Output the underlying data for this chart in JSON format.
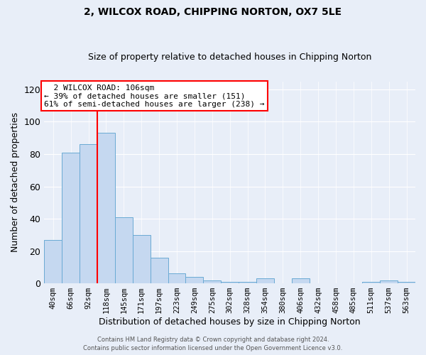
{
  "title": "2, WILCOX ROAD, CHIPPING NORTON, OX7 5LE",
  "subtitle": "Size of property relative to detached houses in Chipping Norton",
  "xlabel": "Distribution of detached houses by size in Chipping Norton",
  "ylabel": "Number of detached properties",
  "bar_labels": [
    "40sqm",
    "66sqm",
    "92sqm",
    "118sqm",
    "145sqm",
    "171sqm",
    "197sqm",
    "223sqm",
    "249sqm",
    "275sqm",
    "302sqm",
    "328sqm",
    "354sqm",
    "380sqm",
    "406sqm",
    "432sqm",
    "458sqm",
    "485sqm",
    "511sqm",
    "537sqm",
    "563sqm"
  ],
  "bar_values": [
    27,
    81,
    86,
    93,
    41,
    30,
    16,
    6,
    4,
    2,
    1,
    1,
    3,
    0,
    3,
    0,
    0,
    0,
    1,
    2,
    1
  ],
  "bar_color": "#c5d8f0",
  "bar_edgecolor": "#6aaad4",
  "ylim": [
    0,
    125
  ],
  "yticks": [
    0,
    20,
    40,
    60,
    80,
    100,
    120
  ],
  "vline_color": "red",
  "annotation_text": "  2 WILCOX ROAD: 106sqm\n← 39% of detached houses are smaller (151)\n61% of semi-detached houses are larger (238) →",
  "footer_line1": "Contains HM Land Registry data © Crown copyright and database right 2024.",
  "footer_line2": "Contains public sector information licensed under the Open Government Licence v3.0.",
  "background_color": "#e8eef8",
  "plot_background": "#e8eef8"
}
